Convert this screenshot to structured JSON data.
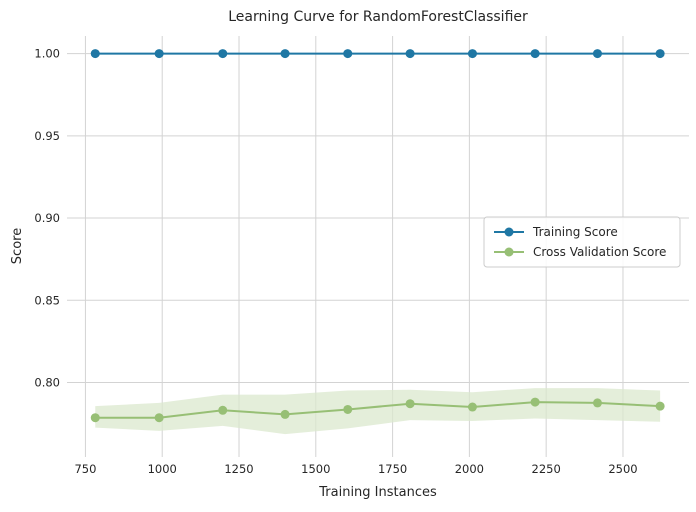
{
  "chart_data": {
    "type": "line",
    "title": "Learning Curve for RandomForestClassifier",
    "xlabel": "Training Instances",
    "ylabel": "Score",
    "xlim": [
      690,
      2715
    ],
    "ylim": [
      0.7547,
      1.0107
    ],
    "grid": true,
    "legend_position": "center-right",
    "x_ticks": [
      750,
      1000,
      1250,
      1500,
      1750,
      2000,
      2250,
      2500
    ],
    "x_tick_labels": [
      "750",
      "1000",
      "1250",
      "1500",
      "1750",
      "2000",
      "2250",
      "2500"
    ],
    "y_ticks": [
      0.8,
      0.85,
      0.9,
      0.95,
      1.0
    ],
    "y_tick_labels": [
      "0.80",
      "0.85",
      "0.90",
      "0.95",
      "1.00"
    ],
    "x": [
      782,
      990,
      1197,
      1400,
      1604,
      1807,
      2010,
      2214,
      2417,
      2621
    ],
    "series": [
      {
        "name": "Training Score",
        "color": "#1f77a4",
        "values": [
          1.0,
          1.0,
          1.0,
          1.0,
          1.0,
          1.0,
          1.0,
          1.0,
          1.0,
          1.0
        ],
        "band_lower": [
          1.0,
          1.0,
          1.0,
          1.0,
          1.0,
          1.0,
          1.0,
          1.0,
          1.0,
          1.0
        ],
        "band_upper": [
          1.0,
          1.0,
          1.0,
          1.0,
          1.0,
          1.0,
          1.0,
          1.0,
          1.0,
          1.0
        ]
      },
      {
        "name": "Cross Validation Score",
        "color": "#97bf75",
        "band_color": "#dbe8cd",
        "values": [
          0.7786,
          0.7786,
          0.7831,
          0.7806,
          0.7836,
          0.7871,
          0.7851,
          0.7881,
          0.7876,
          0.7856
        ],
        "band_lower": [
          0.7726,
          0.7706,
          0.7736,
          0.7686,
          0.7721,
          0.7771,
          0.7766,
          0.7781,
          0.7771,
          0.7761
        ],
        "band_upper": [
          0.7856,
          0.7876,
          0.7926,
          0.7926,
          0.7951,
          0.7956,
          0.7941,
          0.7966,
          0.7966,
          0.7951
        ]
      }
    ]
  }
}
